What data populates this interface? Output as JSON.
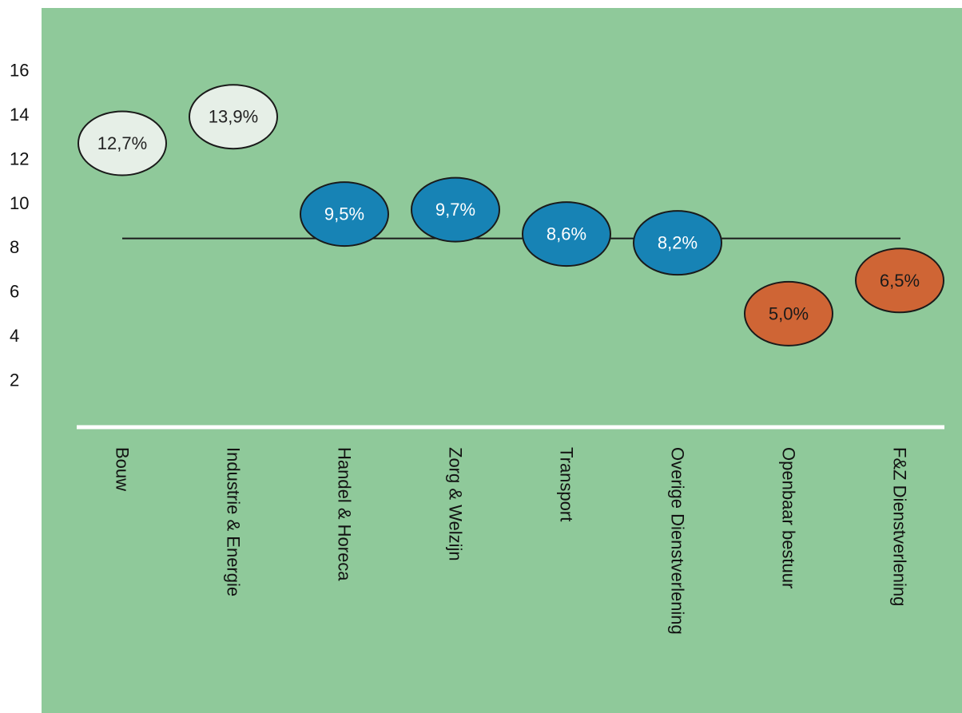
{
  "chart_data": {
    "type": "scatter",
    "title": "",
    "xlabel": "",
    "ylabel": "",
    "ylim": [
      0,
      18
    ],
    "yticks": [
      2,
      4,
      6,
      8,
      10,
      12,
      14,
      16
    ],
    "grid": false,
    "legend": "none",
    "reference_line": {
      "y": 8.4
    },
    "categories": [
      "Bouw",
      "Industrie & Energie",
      "Handel & Horeca",
      "Zorg & Welzijn",
      "Transport",
      "Overige Dienstverlening",
      "Openbaar bestuur",
      "F&Z Dienstverlening"
    ],
    "values": [
      12.7,
      13.9,
      9.5,
      9.7,
      8.6,
      8.2,
      5.0,
      6.5
    ],
    "labels": [
      "12,7%",
      "13,9%",
      "9,5%",
      "9,7%",
      "8,6%",
      "8,2%",
      "5,0%",
      "6,5%"
    ],
    "groups": [
      "high",
      "high",
      "mid",
      "mid",
      "mid",
      "mid",
      "low",
      "low"
    ]
  },
  "colors": {
    "background": "#8fc99a",
    "axis_line": "#ffffff",
    "reference_line": "#1a1a1a",
    "high_fill": "#e6efe7",
    "high_text": "#222222",
    "mid_fill": "#1783b5",
    "mid_text": "#ffffff",
    "low_fill": "#cf6535",
    "low_text": "#1a1a1a",
    "outline": "#1a1a1a"
  }
}
